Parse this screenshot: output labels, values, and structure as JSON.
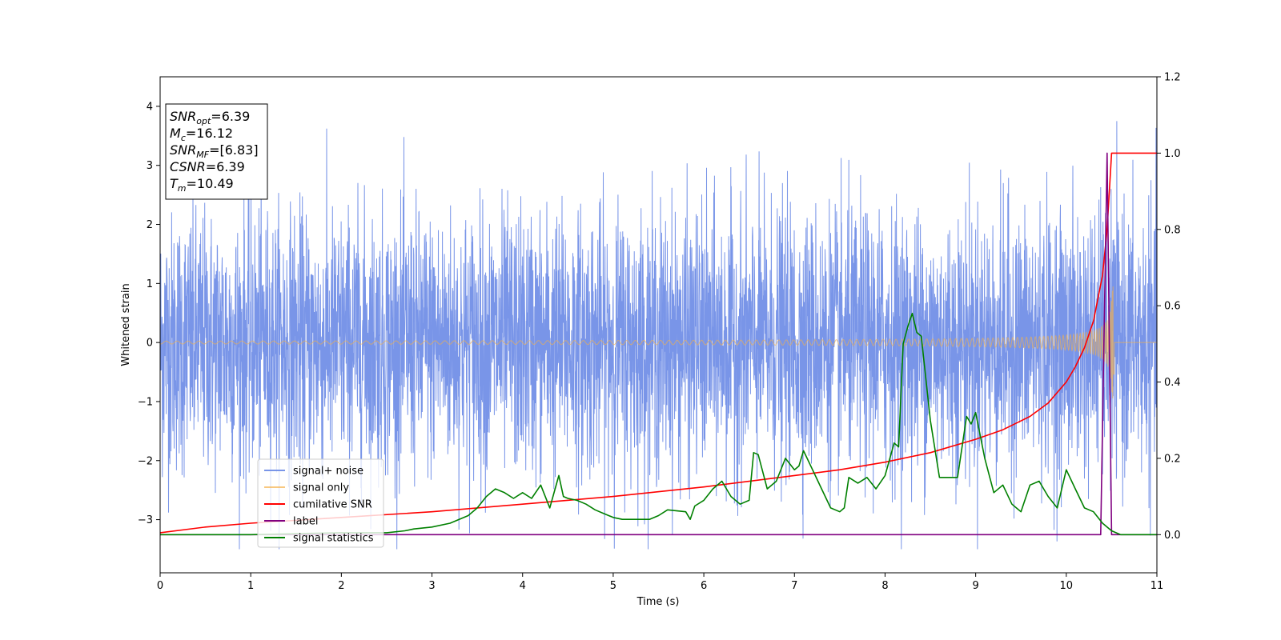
{
  "chart_data": {
    "type": "line",
    "title": "",
    "xlabel": "Time (s)",
    "ylabel_left": "Whitened strain",
    "ylabel_right": "",
    "xlim": [
      0,
      11
    ],
    "ylim_left": [
      -3.9,
      4.5
    ],
    "ylim_right": [
      -0.1,
      1.2
    ],
    "xticks": [
      0,
      1,
      2,
      3,
      4,
      5,
      6,
      7,
      8,
      9,
      10,
      11
    ],
    "yticks_left": [
      -3,
      -2,
      -1,
      0,
      1,
      2,
      3,
      4
    ],
    "yticks_right": [
      0.0,
      0.2,
      0.4,
      0.6,
      0.8,
      1.0,
      1.2
    ],
    "yticks_right_labels": [
      "0.0",
      "0.2",
      "0.4",
      "0.6",
      "0.8",
      "1.0",
      "1.2"
    ],
    "grid": false,
    "legend_position": "lower-left",
    "info_box": {
      "lines": [
        {
          "base": "SNR",
          "sub": "opt",
          "value": "=6.39"
        },
        {
          "base": "M",
          "sub": "c",
          "value": "=16.12"
        },
        {
          "base": "SNR",
          "sub": "MF",
          "value": "=[6.83]"
        },
        {
          "base": "CSNR",
          "sub": "",
          "value": "=6.39"
        },
        {
          "base": "T",
          "sub": "m",
          "value": "=10.49"
        }
      ]
    },
    "series": [
      {
        "name": "signal+ noise",
        "axis": "left",
        "color": "#6a89e6",
        "kind": "noise",
        "amplitude_range": [
          -3.5,
          3.75
        ]
      },
      {
        "name": "signal only",
        "axis": "left",
        "color": "#f5b04a",
        "kind": "chirp",
        "merger_time": 10.49,
        "peak_amplitude": 0.95
      },
      {
        "name": "cumilative SNR",
        "axis": "right",
        "color": "#ff0000",
        "x": [
          0,
          0.5,
          1,
          2,
          3,
          4,
          5,
          6,
          7,
          7.5,
          8,
          8.5,
          9,
          9.3,
          9.6,
          9.8,
          10,
          10.1,
          10.2,
          10.3,
          10.4,
          10.45,
          10.5,
          11
        ],
        "values": [
          0.005,
          0.02,
          0.03,
          0.045,
          0.06,
          0.08,
          0.1,
          0.125,
          0.155,
          0.17,
          0.19,
          0.215,
          0.25,
          0.275,
          0.31,
          0.345,
          0.4,
          0.44,
          0.49,
          0.56,
          0.68,
          0.8,
          1.0,
          1.0
        ]
      },
      {
        "name": "label",
        "axis": "right",
        "color": "#800080",
        "x": [
          0,
          10.38,
          10.45,
          10.5,
          11
        ],
        "values": [
          0,
          0,
          1.0,
          0,
          0
        ]
      },
      {
        "name": "signal statistics",
        "axis": "right",
        "color": "#008000",
        "x": [
          0,
          1.0,
          2.0,
          2.5,
          2.7,
          2.8,
          3.0,
          3.2,
          3.4,
          3.5,
          3.6,
          3.7,
          3.8,
          3.9,
          4.0,
          4.1,
          4.2,
          4.3,
          4.4,
          4.45,
          4.5,
          4.6,
          4.7,
          4.8,
          4.9,
          5.0,
          5.1,
          5.2,
          5.4,
          5.5,
          5.6,
          5.8,
          5.85,
          5.9,
          6.0,
          6.1,
          6.2,
          6.3,
          6.4,
          6.5,
          6.55,
          6.6,
          6.7,
          6.8,
          6.9,
          7.0,
          7.05,
          7.1,
          7.2,
          7.3,
          7.4,
          7.5,
          7.55,
          7.6,
          7.7,
          7.8,
          7.9,
          8.0,
          8.1,
          8.15,
          8.2,
          8.25,
          8.3,
          8.35,
          8.4,
          8.5,
          8.6,
          8.7,
          8.8,
          8.9,
          8.95,
          9.0,
          9.1,
          9.2,
          9.3,
          9.4,
          9.5,
          9.6,
          9.7,
          9.8,
          9.9,
          10.0,
          10.1,
          10.2,
          10.3,
          10.4,
          10.5,
          10.6,
          10.7,
          11.0
        ],
        "values": [
          0.0,
          0.0,
          0.005,
          0.005,
          0.01,
          0.015,
          0.02,
          0.03,
          0.05,
          0.07,
          0.1,
          0.12,
          0.11,
          0.095,
          0.11,
          0.095,
          0.13,
          0.07,
          0.155,
          0.1,
          0.095,
          0.09,
          0.08,
          0.065,
          0.055,
          0.045,
          0.04,
          0.04,
          0.04,
          0.05,
          0.065,
          0.06,
          0.04,
          0.075,
          0.09,
          0.12,
          0.14,
          0.1,
          0.08,
          0.09,
          0.215,
          0.21,
          0.12,
          0.14,
          0.2,
          0.17,
          0.18,
          0.22,
          0.17,
          0.12,
          0.07,
          0.06,
          0.07,
          0.15,
          0.135,
          0.15,
          0.12,
          0.155,
          0.24,
          0.23,
          0.5,
          0.545,
          0.58,
          0.53,
          0.52,
          0.3,
          0.15,
          0.15,
          0.15,
          0.31,
          0.29,
          0.32,
          0.2,
          0.11,
          0.13,
          0.08,
          0.06,
          0.13,
          0.14,
          0.1,
          0.07,
          0.17,
          0.12,
          0.07,
          0.06,
          0.03,
          0.01,
          0.0,
          0.0,
          0.0
        ]
      }
    ]
  }
}
